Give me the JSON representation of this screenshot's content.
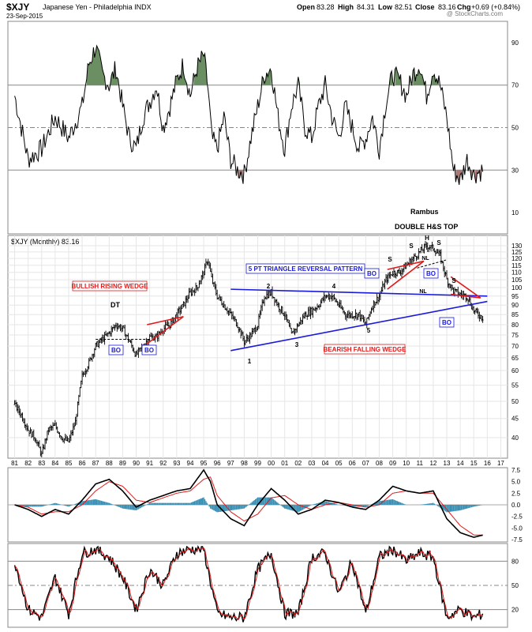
{
  "header": {
    "symbol": "$XJY",
    "name": "Japanese Yen - Philadelphia INDX",
    "date": "23-Sep-2015",
    "open_label": "Open",
    "open": "83.28",
    "high_label": "High",
    "high": "84.31",
    "low_label": "Low",
    "low": "82.51",
    "close_label": "Close",
    "close": "83.16",
    "chg_label": "Chg",
    "chg": "+0.69 (+0.84%)",
    "watermark": "@ StockCharts.com"
  },
  "chart_data": [
    {
      "type": "line",
      "panel": "rsi-top",
      "yticks": [
        10,
        30,
        50,
        70,
        90
      ],
      "ylim": [
        0,
        100
      ],
      "guides": [
        30,
        50,
        70
      ],
      "x": [
        1981.0,
        1982.0,
        1983.0,
        1984.0,
        1985.0,
        1986.0,
        1986.5,
        1987.0,
        1987.5,
        1988.0,
        1988.5,
        1989.0,
        1989.5,
        1990.0,
        1990.5,
        1991.0,
        1991.5,
        1992.0,
        1992.5,
        1993.0,
        1993.5,
        1994.0,
        1994.5,
        1995.0,
        1995.3,
        1995.6,
        1996.0,
        1996.5,
        1997.0,
        1997.5,
        1998.0,
        1998.5,
        1999.0,
        1999.5,
        2000.0,
        2000.5,
        2001.0,
        2001.5,
        2002.0,
        2002.5,
        2003.0,
        2003.5,
        2004.0,
        2004.5,
        2005.0,
        2005.5,
        2006.0,
        2006.5,
        2007.0,
        2007.5,
        2008.0,
        2008.5,
        2009.0,
        2009.5,
        2010.0,
        2010.5,
        2011.0,
        2011.5,
        2012.0,
        2012.5,
        2013.0,
        2013.5,
        2014.0,
        2014.5,
        2015.0,
        2015.7
      ],
      "values": [
        65,
        35,
        40,
        55,
        45,
        60,
        80,
        88,
        75,
        70,
        78,
        60,
        45,
        40,
        55,
        62,
        70,
        50,
        60,
        72,
        80,
        65,
        78,
        84,
        70,
        45,
        40,
        55,
        35,
        30,
        28,
        45,
        60,
        75,
        78,
        55,
        40,
        60,
        70,
        50,
        45,
        60,
        70,
        55,
        45,
        60,
        50,
        40,
        45,
        55,
        40,
        62,
        75,
        72,
        65,
        75,
        80,
        65,
        78,
        70,
        55,
        30,
        25,
        35,
        28,
        30
      ],
      "annotations": [
        "Rambus",
        "DOUBLE H&S TOP"
      ]
    },
    {
      "type": "bar",
      "panel": "price-main",
      "title": "$XJY (Monthly) 83.16",
      "yticks": [
        40,
        45,
        50,
        55,
        60,
        65,
        70,
        75,
        80,
        85,
        90,
        95,
        100,
        105,
        110,
        115,
        120,
        125,
        130
      ],
      "xticks": [
        "81",
        "82",
        "83",
        "84",
        "85",
        "86",
        "87",
        "88",
        "89",
        "90",
        "91",
        "92",
        "93",
        "94",
        "95",
        "96",
        "97",
        "98",
        "99",
        "00",
        "01",
        "02",
        "03",
        "04",
        "05",
        "06",
        "07",
        "08",
        "09",
        "10",
        "11",
        "12",
        "13",
        "14",
        "15",
        "16",
        "17"
      ],
      "x": [
        1981.0,
        1981.5,
        1982.0,
        1982.5,
        1983.0,
        1983.5,
        1984.0,
        1984.5,
        1985.0,
        1985.5,
        1986.0,
        1986.5,
        1987.0,
        1987.5,
        1988.0,
        1988.5,
        1989.0,
        1989.5,
        1990.0,
        1990.5,
        1991.0,
        1991.5,
        1992.0,
        1992.5,
        1993.0,
        1993.5,
        1994.0,
        1994.5,
        1995.0,
        1995.3,
        1995.6,
        1996.0,
        1996.5,
        1997.0,
        1997.5,
        1998.0,
        1998.5,
        1999.0,
        1999.5,
        2000.0,
        2000.5,
        2001.0,
        2001.5,
        2002.0,
        2002.5,
        2003.0,
        2003.5,
        2004.0,
        2004.5,
        2005.0,
        2005.5,
        2006.0,
        2006.5,
        2007.0,
        2007.5,
        2008.0,
        2008.5,
        2009.0,
        2009.5,
        2010.0,
        2010.5,
        2011.0,
        2011.5,
        2012.0,
        2012.5,
        2013.0,
        2013.5,
        2014.0,
        2014.5,
        2015.0,
        2015.7
      ],
      "values": [
        49,
        46,
        42,
        40,
        36,
        42,
        43,
        40,
        39,
        44,
        58,
        63,
        70,
        73,
        76,
        80,
        78,
        72,
        66,
        70,
        74,
        74,
        78,
        80,
        85,
        90,
        97,
        100,
        110,
        120,
        105,
        95,
        90,
        85,
        80,
        72,
        75,
        80,
        95,
        97,
        90,
        85,
        75,
        80,
        85,
        87,
        90,
        95,
        95,
        90,
        85,
        85,
        85,
        80,
        90,
        95,
        105,
        110,
        110,
        115,
        120,
        125,
        130,
        128,
        122,
        105,
        98,
        96,
        95,
        87,
        83.16
      ],
      "annotations": [
        "BULLISH RISING WEDGE",
        "DT",
        "BO",
        "BO",
        "5 PT TRIANGLE REVERSAL PATTERN",
        "1",
        "2",
        "3",
        "4",
        "5",
        "BO",
        "S",
        "S",
        "H",
        "S",
        "NL",
        "NL",
        "BO",
        "S",
        "BO",
        "BEARISH FALLING WEDGE"
      ]
    },
    {
      "type": "line",
      "panel": "macd",
      "yticks": [
        "7.5",
        "5.0",
        "2.5",
        "0.0",
        "-2.5",
        "-5.0",
        "-7.5"
      ],
      "ylim": [
        -8,
        8
      ],
      "x": [
        1981.0,
        1982.0,
        1983.0,
        1984.0,
        1985.0,
        1986.0,
        1987.0,
        1988.0,
        1989.0,
        1990.0,
        1991.0,
        1992.0,
        1993.0,
        1994.0,
        1995.0,
        1995.5,
        1996.0,
        1997.0,
        1998.0,
        1999.0,
        2000.0,
        2001.0,
        2002.0,
        2003.0,
        2004.0,
        2005.0,
        2006.0,
        2007.0,
        2008.0,
        2009.0,
        2010.0,
        2011.0,
        2012.0,
        2013.0,
        2014.0,
        2015.0,
        2015.7
      ],
      "series": [
        {
          "values": [
            0,
            -1,
            -2.5,
            -1,
            -2,
            1,
            4.5,
            5.5,
            3,
            -0.5,
            1,
            2,
            3,
            3.5,
            7.5,
            5,
            0,
            -3,
            -4.5,
            0,
            3.5,
            1,
            -2,
            -1,
            1,
            0.5,
            -0.5,
            -1,
            1,
            4,
            3,
            2.5,
            3,
            -3,
            -6,
            -7,
            -6.5
          ]
        },
        {
          "values": [
            0,
            -0.5,
            -2,
            -1.5,
            -1.5,
            0,
            3,
            5,
            4,
            1,
            0.5,
            1.5,
            2.5,
            3,
            5.5,
            6,
            2,
            -1.5,
            -3.5,
            -2,
            1.5,
            2,
            0,
            -1,
            0,
            0.5,
            0,
            -0.5,
            0,
            2.5,
            3,
            2.5,
            2.5,
            -1,
            -4.5,
            -6.5,
            -6.5
          ]
        }
      ]
    },
    {
      "type": "line",
      "panel": "stoch",
      "yticks": [
        20,
        50,
        80
      ],
      "ylim": [
        0,
        100
      ],
      "guides": [
        20,
        50,
        80
      ],
      "x": [
        1981.0,
        1982.0,
        1983.0,
        1984.0,
        1985.0,
        1986.0,
        1987.0,
        1988.0,
        1989.0,
        1990.0,
        1991.0,
        1992.0,
        1993.0,
        1994.0,
        1995.0,
        1996.0,
        1997.0,
        1998.0,
        1999.0,
        2000.0,
        2001.0,
        2002.0,
        2003.0,
        2004.0,
        2005.0,
        2006.0,
        2007.0,
        2008.0,
        2009.0,
        2010.0,
        2011.0,
        2012.0,
        2013.0,
        2014.0,
        2015.0,
        2015.7
      ],
      "series": [
        {
          "values": [
            80,
            20,
            10,
            60,
            15,
            90,
            95,
            85,
            60,
            20,
            70,
            50,
            90,
            95,
            95,
            15,
            10,
            10,
            70,
            90,
            15,
            15,
            85,
            90,
            40,
            80,
            15,
            85,
            95,
            80,
            90,
            85,
            10,
            20,
            10,
            15
          ]
        },
        {
          "values": [
            75,
            25,
            15,
            55,
            20,
            85,
            92,
            85,
            65,
            25,
            65,
            50,
            85,
            92,
            92,
            20,
            12,
            12,
            65,
            85,
            20,
            18,
            80,
            88,
            45,
            75,
            20,
            80,
            92,
            82,
            88,
            85,
            15,
            20,
            12,
            15
          ]
        }
      ]
    }
  ],
  "colors": {
    "bar": "#000000",
    "line_blue": "#1a1adc",
    "wedge_red": "#e01a1a",
    "ovb_fill": "#6b8f63",
    "ovs_fill": "#a97874",
    "hist": "#3a8fb3",
    "signal": "#e01a1a"
  }
}
